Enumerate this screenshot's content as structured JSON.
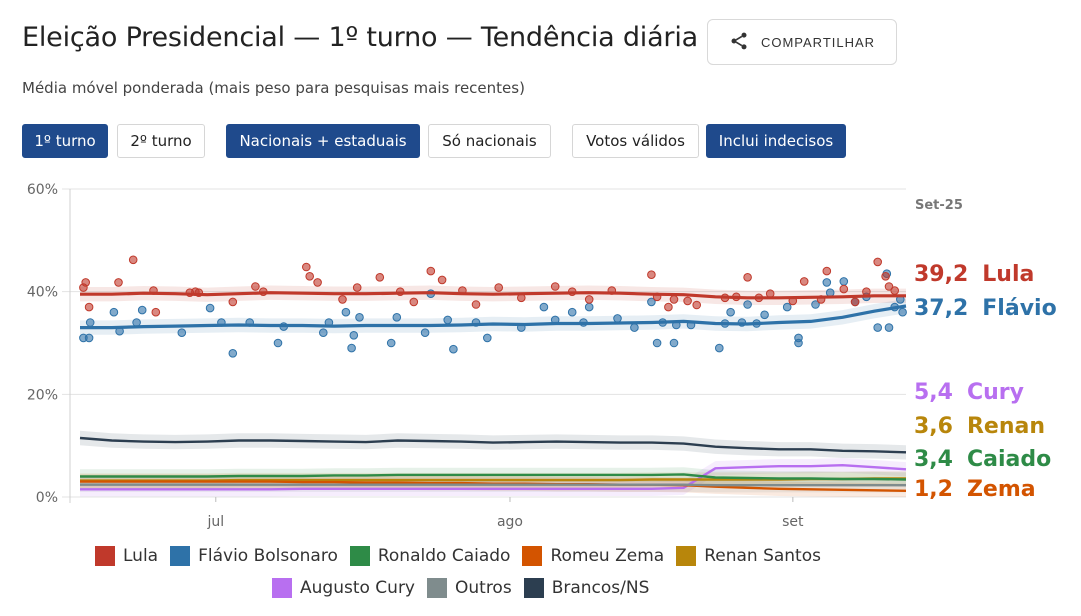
{
  "header": {
    "title": "Eleição Presidencial — 1º turno — Tendência diária",
    "subtitle": "Média móvel ponderada (mais peso para pesquisas mais recentes)",
    "share_label": "COMPARTILHAR",
    "share_icon": "share-icon"
  },
  "controls": {
    "round_1": "1º turno",
    "round_2": "2º turno",
    "scope_all": "Nacionais + estaduais",
    "scope_national": "Só nacionais",
    "valid_votes": "Votos válidos",
    "include_undecided": "Inclui indecisos"
  },
  "colors": {
    "lula": "#c0392b",
    "flavio": "#2e72a8",
    "caiado": "#2e8b47",
    "zema": "#d35400",
    "renan": "#b8860b",
    "cury": "#b86ff0",
    "outros": "#7f8c8d",
    "brancos": "#2c3e50"
  },
  "chart_data": {
    "type": "line",
    "y_ticks": [
      "0%",
      "20%",
      "40%",
      "60%"
    ],
    "ylim": [
      0,
      60
    ],
    "x_ticks": [
      "jul",
      "ago",
      "set"
    ],
    "date_label": "Set-25",
    "grid": true,
    "series": [
      {
        "key": "lula",
        "name": "Lula",
        "end_label": "39,2",
        "end_name": "Lula",
        "values": [
          39.5,
          39.5,
          39.7,
          39.6,
          39.4,
          39.6,
          39.8,
          39.7,
          39.6,
          39.6,
          39.7,
          39.8,
          39.6,
          39.5,
          39.6,
          39.7,
          39.8,
          39.7,
          39.5,
          39.4,
          39.0,
          38.8,
          38.8,
          38.9,
          39.0,
          39.2,
          39.2
        ]
      },
      {
        "key": "flavio",
        "name": "Flávio Bolsonaro",
        "end_label": "37,2",
        "end_name": "Flávio",
        "values": [
          33.0,
          33.0,
          33.2,
          33.3,
          33.4,
          33.5,
          33.4,
          33.4,
          33.3,
          33.4,
          33.4,
          33.4,
          33.5,
          33.7,
          33.6,
          33.8,
          33.8,
          33.9,
          34.0,
          34.2,
          33.8,
          33.7,
          34.0,
          34.2,
          35.0,
          36.2,
          37.2
        ]
      },
      {
        "key": "cury",
        "name": "Augusto Cury",
        "end_label": "5,4",
        "end_name": "Cury",
        "values": [
          1.5,
          1.5,
          1.5,
          1.5,
          1.5,
          1.5,
          1.5,
          1.6,
          1.6,
          1.6,
          1.6,
          1.6,
          1.6,
          1.6,
          1.6,
          1.6,
          1.6,
          1.6,
          1.6,
          1.8,
          5.6,
          5.8,
          6.0,
          6.0,
          6.2,
          5.8,
          5.4
        ]
      },
      {
        "key": "renan",
        "name": "Renan Santos",
        "end_label": "3,6",
        "end_name": "Renan",
        "values": [
          3.2,
          3.2,
          3.2,
          3.2,
          3.2,
          3.3,
          3.3,
          3.3,
          3.3,
          3.3,
          3.3,
          3.3,
          3.3,
          3.3,
          3.3,
          3.3,
          3.3,
          3.3,
          3.4,
          3.4,
          3.4,
          3.4,
          3.4,
          3.5,
          3.5,
          3.6,
          3.6
        ]
      },
      {
        "key": "caiado",
        "name": "Ronaldo Caiado",
        "end_label": "3,4",
        "end_name": "Caiado",
        "values": [
          4.0,
          4.0,
          4.0,
          4.0,
          4.0,
          4.1,
          4.1,
          4.1,
          4.2,
          4.2,
          4.3,
          4.3,
          4.3,
          4.3,
          4.3,
          4.3,
          4.3,
          4.3,
          4.3,
          4.4,
          3.8,
          3.7,
          3.6,
          3.6,
          3.5,
          3.5,
          3.4
        ]
      },
      {
        "key": "zema",
        "name": "Romeu Zema",
        "end_label": "1,2",
        "end_name": "Zema",
        "values": [
          3.0,
          3.0,
          3.0,
          3.0,
          3.0,
          3.0,
          3.0,
          2.9,
          2.9,
          2.8,
          2.8,
          2.7,
          2.7,
          2.6,
          2.6,
          2.5,
          2.5,
          2.4,
          2.4,
          2.3,
          2.0,
          1.8,
          1.6,
          1.5,
          1.4,
          1.3,
          1.2
        ]
      },
      {
        "key": "brancos",
        "name": "Brancos/NS",
        "values": [
          11.5,
          11.0,
          10.8,
          10.7,
          10.8,
          11.0,
          11.0,
          10.9,
          10.8,
          10.7,
          11.0,
          10.9,
          10.8,
          10.6,
          10.7,
          10.8,
          10.7,
          10.6,
          10.6,
          10.4,
          9.8,
          9.5,
          9.3,
          9.3,
          9.0,
          8.9,
          8.7
        ]
      },
      {
        "key": "outros",
        "name": "Outros",
        "values": [
          2.4,
          2.4,
          2.4,
          2.4,
          2.4,
          2.4,
          2.4,
          2.4,
          2.4,
          2.4,
          2.4,
          2.4,
          2.4,
          2.4,
          2.4,
          2.4,
          2.4,
          2.4,
          2.4,
          2.4,
          2.3,
          2.3,
          2.3,
          2.3,
          2.3,
          2.3,
          2.3
        ]
      }
    ],
    "polls": {
      "lula": [
        [
          0.3,
          40.8
        ],
        [
          0.5,
          41.8
        ],
        [
          0.8,
          37.0
        ],
        [
          3.4,
          41.8
        ],
        [
          4.7,
          46.2
        ],
        [
          6.7,
          36.0
        ],
        [
          6.5,
          40.2
        ],
        [
          9.7,
          39.8
        ],
        [
          10.5,
          39.8
        ],
        [
          10.2,
          40.0
        ],
        [
          13.5,
          38.0
        ],
        [
          15.5,
          41.0
        ],
        [
          16.2,
          40.0
        ],
        [
          20.0,
          44.8
        ],
        [
          20.3,
          43.0
        ],
        [
          21.0,
          41.8
        ],
        [
          23.2,
          38.5
        ],
        [
          24.5,
          40.8
        ],
        [
          26.5,
          42.8
        ],
        [
          28.3,
          40.0
        ],
        [
          29.5,
          38.0
        ],
        [
          31.0,
          44.0
        ],
        [
          32.0,
          42.3
        ],
        [
          33.8,
          40.2
        ],
        [
          35.0,
          37.5
        ],
        [
          37.0,
          40.8
        ],
        [
          39.0,
          38.8
        ],
        [
          42.0,
          41.0
        ],
        [
          43.5,
          40.0
        ],
        [
          45.0,
          38.5
        ],
        [
          47.0,
          40.2
        ],
        [
          50.5,
          43.3
        ],
        [
          51.0,
          39.0
        ],
        [
          52.0,
          37.0
        ],
        [
          52.5,
          38.5
        ],
        [
          53.7,
          38.2
        ],
        [
          54.5,
          37.4
        ],
        [
          57.0,
          38.8
        ],
        [
          58.0,
          39.0
        ],
        [
          59.0,
          42.8
        ],
        [
          60.0,
          38.8
        ],
        [
          61.0,
          39.6
        ],
        [
          63.0,
          38.2
        ],
        [
          64.0,
          42.0
        ],
        [
          65.5,
          38.5
        ],
        [
          66.0,
          44.0
        ],
        [
          67.5,
          40.5
        ],
        [
          68.5,
          38.0
        ],
        [
          69.5,
          40.0
        ],
        [
          70.5,
          45.8
        ],
        [
          71.2,
          43.0
        ],
        [
          71.5,
          41.0
        ],
        [
          72.0,
          40.2
        ]
      ],
      "flavio": [
        [
          0.3,
          31.0
        ],
        [
          0.8,
          31.0
        ],
        [
          0.9,
          34.0
        ],
        [
          3.0,
          36.0
        ],
        [
          3.5,
          32.3
        ],
        [
          5.0,
          34.0
        ],
        [
          5.5,
          36.4
        ],
        [
          9.0,
          32.0
        ],
        [
          11.5,
          36.8
        ],
        [
          12.5,
          34.0
        ],
        [
          13.5,
          28.0
        ],
        [
          15.0,
          34.0
        ],
        [
          17.5,
          30.0
        ],
        [
          18.0,
          33.2
        ],
        [
          21.5,
          32.0
        ],
        [
          22.0,
          34.0
        ],
        [
          23.5,
          36.0
        ],
        [
          24.0,
          29.0
        ],
        [
          24.2,
          31.5
        ],
        [
          24.7,
          35.0
        ],
        [
          27.5,
          30.0
        ],
        [
          28.0,
          35.0
        ],
        [
          30.5,
          32.0
        ],
        [
          31.0,
          39.6
        ],
        [
          32.5,
          34.5
        ],
        [
          33.0,
          28.8
        ],
        [
          35.0,
          34.0
        ],
        [
          36.0,
          31.0
        ],
        [
          39.0,
          33.0
        ],
        [
          41.0,
          37.0
        ],
        [
          42.0,
          34.5
        ],
        [
          43.5,
          36.0
        ],
        [
          44.5,
          34.0
        ],
        [
          45.0,
          37.0
        ],
        [
          47.5,
          34.8
        ],
        [
          49.0,
          33.0
        ],
        [
          50.5,
          38.0
        ],
        [
          51.0,
          30.0
        ],
        [
          51.5,
          34.0
        ],
        [
          52.5,
          30.0
        ],
        [
          52.7,
          33.5
        ],
        [
          54.0,
          33.5
        ],
        [
          56.5,
          29.0
        ],
        [
          57.0,
          33.8
        ],
        [
          57.5,
          36.0
        ],
        [
          58.5,
          34.0
        ],
        [
          59.0,
          37.5
        ],
        [
          59.8,
          33.8
        ],
        [
          60.5,
          35.5
        ],
        [
          62.5,
          37.0
        ],
        [
          63.5,
          31.0
        ],
        [
          63.5,
          30.0
        ],
        [
          65.0,
          37.5
        ],
        [
          66.0,
          41.8
        ],
        [
          66.3,
          39.8
        ],
        [
          67.5,
          42.0
        ],
        [
          68.5,
          38.0
        ],
        [
          69.5,
          39.0
        ],
        [
          70.5,
          33.0
        ],
        [
          71.3,
          43.5
        ],
        [
          71.5,
          33.0
        ],
        [
          72.0,
          37.0
        ],
        [
          72.5,
          38.5
        ],
        [
          72.7,
          36.0
        ]
      ]
    }
  },
  "legend": {
    "items": [
      {
        "key": "lula",
        "label": "Lula"
      },
      {
        "key": "flavio",
        "label": "Flávio Bolsonaro"
      },
      {
        "key": "caiado",
        "label": "Ronaldo Caiado"
      },
      {
        "key": "zema",
        "label": "Romeu Zema"
      },
      {
        "key": "renan",
        "label": "Renan Santos"
      },
      {
        "key": "cury",
        "label": "Augusto Cury"
      },
      {
        "key": "outros",
        "label": "Outros"
      },
      {
        "key": "brancos",
        "label": "Brancos/NS"
      }
    ]
  }
}
